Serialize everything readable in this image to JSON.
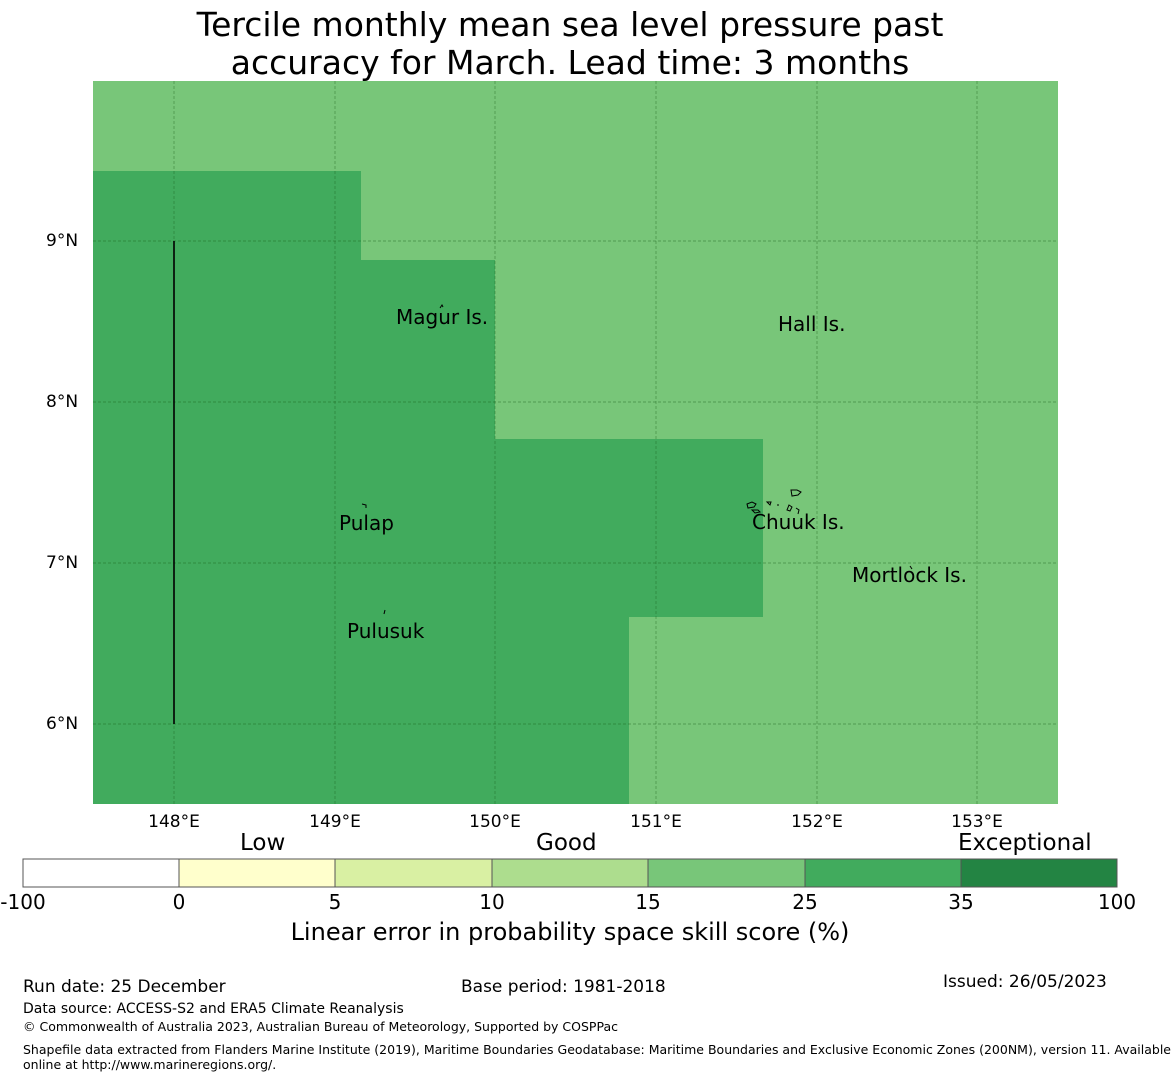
{
  "title": {
    "line1": "Tercile monthly mean sea level pressure past",
    "line2": "accuracy for March. Lead time: 3 months"
  },
  "map": {
    "lat_labels": [
      "9°N",
      "8°N",
      "7°N",
      "6°N"
    ],
    "lon_labels": [
      "148°E",
      "149°E",
      "150°E",
      "151°E",
      "152°E",
      "153°E"
    ],
    "places": [
      "Magur Is.",
      "Hall Is.",
      "Pulap",
      "Chuuk Is.",
      "Mortlock Is.",
      "Pulusuk"
    ],
    "colors": {
      "category_15_25": "#78c679",
      "category_25_35": "#41ab5d"
    }
  },
  "colorbar": {
    "categories": [
      "Low",
      "Good",
      "Exceptional"
    ],
    "ticks": [
      "-100",
      "0",
      "5",
      "10",
      "15",
      "25",
      "35",
      "100"
    ],
    "colors": [
      "#ffffff",
      "#ffffcc",
      "#d9f0a3",
      "#addd8e",
      "#78c679",
      "#41ab5d",
      "#238443"
    ],
    "label": "Linear error in probability space skill score (%)"
  },
  "footer": {
    "run_date": "Run date: 25 December",
    "base_period": "Base period: 1981-2018",
    "issued": "Issued: 26/05/2023",
    "data_source": "Data source: ACCESS-S2 and ERA5 Climate Reanalysis",
    "copyright": "© Commonwealth of Australia 2023, Australian Bureau of Meteorology, Supported by COSPPac",
    "shapefile_line1": "Shapefile data extracted from Flanders Marine Institute (2019), Maritime Boundaries Geodatabase: Maritime Boundaries and Exclusive Economic Zones (200NM), version 11. Available",
    "shapefile_line2": "online at http://www.marineregions.org/."
  }
}
